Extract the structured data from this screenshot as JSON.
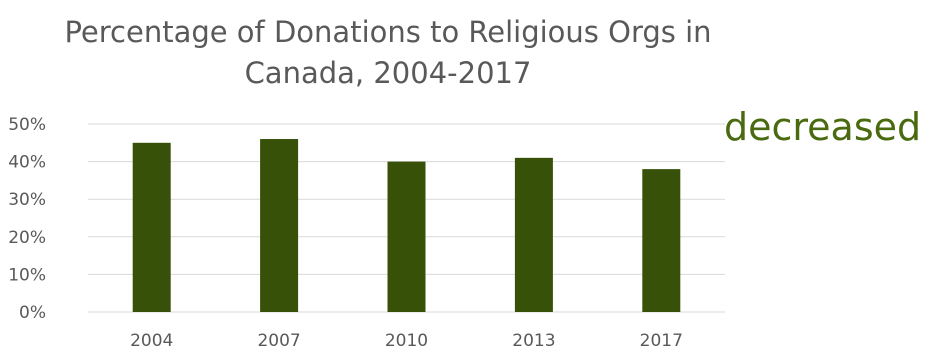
{
  "colors": {
    "bar": "#375109",
    "annotation": "#4a6a10"
  },
  "annotation": {
    "text": "decreased"
  },
  "chart_data": {
    "type": "bar",
    "title": "Percentage of Donations to Religious Orgs in Canada, 2004-2017",
    "title_lines": [
      "Percentage of Donations to Religious Orgs in",
      "Canada, 2004-2017"
    ],
    "categories": [
      "2004",
      "2007",
      "2010",
      "2013",
      "2017"
    ],
    "values": [
      45,
      46,
      40,
      41,
      38
    ],
    "unit": "%",
    "ylim": [
      0,
      50
    ],
    "yticks": [
      0,
      10,
      20,
      30,
      40,
      50
    ],
    "ytick_labels": [
      "0%",
      "10%",
      "20%",
      "30%",
      "40%",
      "50%"
    ],
    "grid": true,
    "legend": "none",
    "xlabel": "",
    "ylabel": ""
  }
}
